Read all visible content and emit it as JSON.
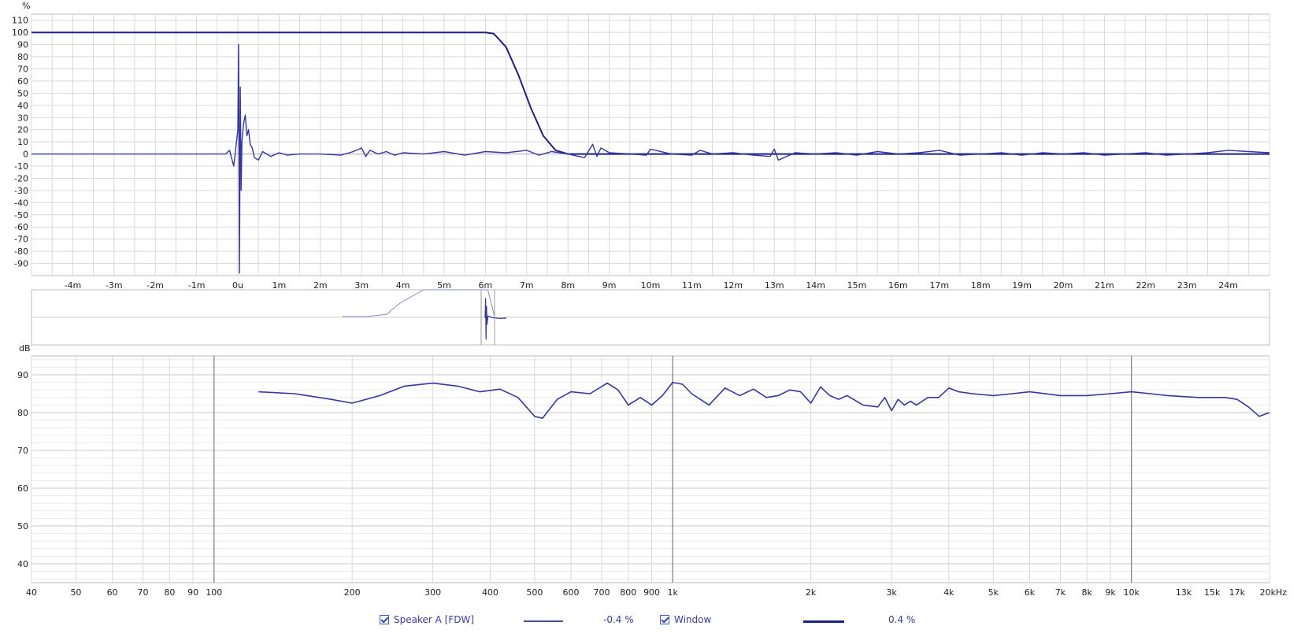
{
  "colors": {
    "trace": "#3535a8",
    "trace_dark": "#1e1e8a",
    "grid": "#d9d9d9",
    "grid_major": "#7a7a7a"
  },
  "chart_data": [
    {
      "type": "line",
      "title": "",
      "ylabel": "%",
      "xlim": [
        -5,
        25
      ],
      "ylim": [
        -100,
        115
      ],
      "x_tick_labels": [
        "-4m",
        "-3m",
        "-2m",
        "-1m",
        "0u",
        "1m",
        "2m",
        "3m",
        "4m",
        "5m",
        "6m",
        "7m",
        "8m",
        "9m",
        "10m",
        "11m",
        "12m",
        "13m",
        "14m",
        "15m",
        "16m",
        "17m",
        "18m",
        "19m",
        "20m",
        "21m",
        "22m",
        "23m",
        "24m"
      ],
      "x_tick_values": [
        -4,
        -3,
        -2,
        -1,
        0,
        1,
        2,
        3,
        4,
        5,
        6,
        7,
        8,
        9,
        10,
        11,
        12,
        13,
        14,
        15,
        16,
        17,
        18,
        19,
        20,
        21,
        22,
        23,
        24
      ],
      "y_tick_labels": [
        "110",
        "100",
        "90",
        "80",
        "70",
        "60",
        "50",
        "40",
        "30",
        "20",
        "10",
        "0",
        "-10",
        "-20",
        "-30",
        "-40",
        "-50",
        "-60",
        "-70",
        "-80",
        "-90"
      ],
      "y_tick_values": [
        110,
        100,
        90,
        80,
        70,
        60,
        50,
        40,
        30,
        20,
        10,
        0,
        -10,
        -20,
        -30,
        -40,
        -50,
        -60,
        -70,
        -80,
        -90
      ],
      "series": [
        {
          "id": "window",
          "x": [
            -5,
            6.0,
            6.2,
            6.5,
            6.8,
            7.1,
            7.4,
            7.7,
            8.0,
            25
          ],
          "y": [
            100,
            100,
            99,
            88,
            65,
            38,
            15,
            3,
            0,
            0
          ]
        },
        {
          "id": "impulse",
          "x": [
            -5,
            -0.3,
            -0.2,
            -0.1,
            0,
            0.02,
            0.04,
            0.06,
            0.08,
            0.1,
            0.14,
            0.18,
            0.22,
            0.26,
            0.3,
            0.35,
            0.4,
            0.5,
            0.6,
            0.8,
            1.0,
            1.2,
            1.5,
            2.0,
            2.5,
            2.8,
            3.0,
            3.1,
            3.2,
            3.4,
            3.6,
            3.8,
            4.0,
            4.5,
            5.0,
            5.5,
            6.0,
            6.5,
            7.0,
            7.3,
            7.6,
            8.0,
            8.4,
            8.6,
            8.7,
            8.8,
            9.0,
            9.5,
            9.9,
            10.0,
            10.5,
            11.0,
            11.2,
            11.5,
            12.0,
            12.5,
            12.9,
            13.0,
            13.1,
            13.5,
            14.0,
            14.5,
            15.0,
            15.5,
            16.0,
            16.5,
            17.0,
            17.5,
            18.0,
            18.5,
            19.0,
            19.5,
            20.0,
            20.5,
            21.0,
            21.5,
            22.0,
            22.5,
            23.0,
            23.5,
            24.0,
            24.5,
            25
          ],
          "y": [
            0,
            0,
            3,
            -10,
            20,
            90,
            -98,
            55,
            -30,
            10,
            25,
            32,
            15,
            20,
            8,
            5,
            -3,
            -5,
            2,
            -2,
            1,
            -1,
            0,
            0,
            -1,
            2,
            5,
            -2,
            3,
            0,
            2,
            -1,
            1,
            0,
            2,
            -1,
            2,
            1,
            3,
            -1,
            2,
            0,
            -3,
            8,
            -2,
            5,
            1,
            0,
            -1,
            4,
            0,
            -1,
            3,
            0,
            1,
            -1,
            -2,
            4,
            -5,
            1,
            0,
            1,
            -1,
            2,
            0,
            1,
            3,
            -1,
            0,
            1,
            -1,
            1,
            0,
            1,
            -1,
            0,
            1,
            -1,
            0,
            1,
            3,
            2,
            1
          ]
        }
      ]
    },
    {
      "type": "line",
      "title": "",
      "ylabel": "",
      "series": [
        {
          "id": "overview-window",
          "x": [
            -4,
            -3.3,
            -2.7,
            -2.3,
            -1.6,
            -0.9,
            0,
            0.3,
            0.5
          ],
          "y": [
            0,
            0,
            8,
            50,
            100,
            100,
            100,
            100,
            0
          ]
        },
        {
          "id": "overview-impulse",
          "x": [
            0,
            0.02,
            0.04,
            0.06,
            0.08,
            0.12,
            0.3,
            0.6,
            0.9
          ],
          "y": [
            0,
            90,
            -98,
            55,
            -30,
            10,
            2,
            -1,
            0
          ]
        }
      ]
    },
    {
      "type": "line",
      "title": "",
      "ylabel": "dB",
      "xscale": "log",
      "xlim": [
        40,
        20000
      ],
      "ylim": [
        35,
        95
      ],
      "x_tick_labels": [
        "40",
        "50",
        "60",
        "70",
        "80",
        "90",
        "100",
        "200",
        "300",
        "400",
        "500",
        "600",
        "700",
        "800",
        "900",
        "1k",
        "2k",
        "3k",
        "4k",
        "5k",
        "6k",
        "7k",
        "8k",
        "9k",
        "10k",
        "13k",
        "15k",
        "17k",
        "20kHz"
      ],
      "x_tick_values": [
        40,
        50,
        60,
        70,
        80,
        90,
        100,
        200,
        300,
        400,
        500,
        600,
        700,
        800,
        900,
        1000,
        2000,
        3000,
        4000,
        5000,
        6000,
        7000,
        8000,
        9000,
        10000,
        13000,
        15000,
        17000,
        20000
      ],
      "y_tick_labels": [
        "90",
        "80",
        "70",
        "60",
        "50",
        "40"
      ],
      "y_tick_values": [
        90,
        80,
        70,
        60,
        50,
        40
      ],
      "series": [
        {
          "id": "speaker-a",
          "x": [
            125,
            150,
            180,
            200,
            230,
            260,
            300,
            340,
            380,
            420,
            460,
            500,
            520,
            560,
            600,
            660,
            720,
            760,
            800,
            850,
            900,
            950,
            1000,
            1050,
            1100,
            1200,
            1300,
            1400,
            1500,
            1600,
            1700,
            1800,
            1900,
            2000,
            2100,
            2200,
            2300,
            2400,
            2600,
            2800,
            2900,
            3000,
            3100,
            3200,
            3300,
            3400,
            3600,
            3800,
            4000,
            4200,
            4500,
            5000,
            5500,
            6000,
            7000,
            8000,
            9000,
            10000,
            11000,
            12000,
            14000,
            16000,
            17000,
            18000,
            19000,
            20000
          ],
          "y": [
            85.5,
            85,
            83.5,
            82.5,
            84.5,
            87,
            87.8,
            87,
            85.5,
            86.2,
            84,
            79,
            78.5,
            83.5,
            85.5,
            85,
            87.8,
            86,
            82,
            84,
            82,
            84.5,
            88,
            87.5,
            85,
            82,
            86.5,
            84.5,
            86.2,
            84,
            84.5,
            86,
            85.5,
            82.5,
            86.8,
            84.5,
            83.5,
            84.5,
            82,
            81.5,
            84,
            80.5,
            83.5,
            82,
            83,
            82,
            84,
            84,
            86.5,
            85.5,
            85,
            84.5,
            85,
            85.5,
            84.5,
            84.5,
            85,
            85.5,
            85,
            84.5,
            84,
            84,
            83.5,
            81.5,
            79,
            80
          ]
        }
      ]
    }
  ],
  "legend": {
    "items": [
      {
        "label": "Speaker A [FDW]",
        "value": "-0.4 %"
      },
      {
        "label": "Window",
        "value": "0.4 %"
      }
    ]
  }
}
